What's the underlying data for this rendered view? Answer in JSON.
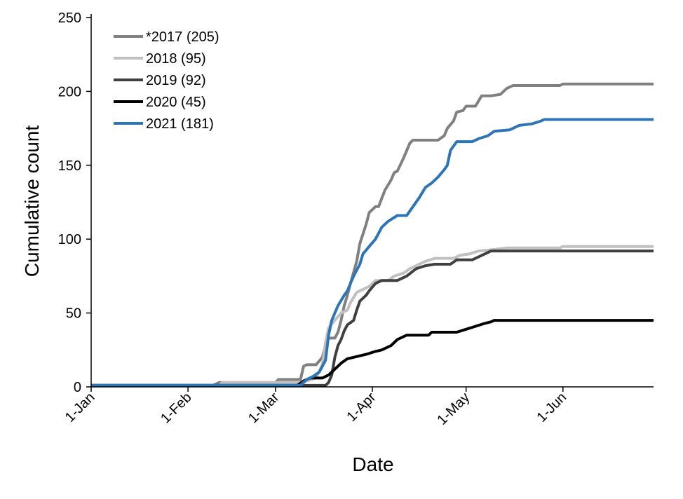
{
  "chart_data": {
    "type": "line",
    "xlabel": "Date",
    "ylabel": "Cumulative count",
    "ylim": [
      0,
      250
    ],
    "xlim": [
      "2021-01-01",
      "2021-06-30"
    ],
    "x_ticks": [
      "1-Jan",
      "1-Feb",
      "1-Mar",
      "1-Apr",
      "1-May",
      "1-Jun"
    ],
    "x_tick_dates": [
      "2021-01-01",
      "2021-02-01",
      "2021-03-01",
      "2021-04-01",
      "2021-05-01",
      "2021-06-01"
    ],
    "y_ticks": [
      0,
      50,
      100,
      150,
      200,
      250
    ],
    "grid": false,
    "legend_position": "top-left",
    "series": [
      {
        "name": "*2017 (205)",
        "color": "#808080",
        "points": [
          [
            "2021-01-01",
            1
          ],
          [
            "2021-02-09",
            1
          ],
          [
            "2021-02-11",
            3
          ],
          [
            "2021-03-01",
            3
          ],
          [
            "2021-03-02",
            5
          ],
          [
            "2021-03-09",
            5
          ],
          [
            "2021-03-10",
            14
          ],
          [
            "2021-03-11",
            15
          ],
          [
            "2021-03-14",
            15
          ],
          [
            "2021-03-16",
            20
          ],
          [
            "2021-03-17",
            28
          ],
          [
            "2021-03-18",
            33
          ],
          [
            "2021-03-20",
            33
          ],
          [
            "2021-03-21",
            37
          ],
          [
            "2021-03-22",
            45
          ],
          [
            "2021-03-23",
            55
          ],
          [
            "2021-03-24",
            62
          ],
          [
            "2021-03-25",
            70
          ],
          [
            "2021-03-27",
            85
          ],
          [
            "2021-03-28",
            97
          ],
          [
            "2021-03-30",
            110
          ],
          [
            "2021-03-31",
            118
          ],
          [
            "2021-04-02",
            122
          ],
          [
            "2021-04-03",
            122
          ],
          [
            "2021-04-05",
            133
          ],
          [
            "2021-04-07",
            140
          ],
          [
            "2021-04-08",
            145
          ],
          [
            "2021-04-09",
            146
          ],
          [
            "2021-04-11",
            155
          ],
          [
            "2021-04-13",
            165
          ],
          [
            "2021-04-14",
            167
          ],
          [
            "2021-04-22",
            167
          ],
          [
            "2021-04-24",
            170
          ],
          [
            "2021-04-25",
            175
          ],
          [
            "2021-04-27",
            180
          ],
          [
            "2021-04-28",
            186
          ],
          [
            "2021-04-30",
            187
          ],
          [
            "2021-05-01",
            190
          ],
          [
            "2021-05-04",
            190
          ],
          [
            "2021-05-06",
            197
          ],
          [
            "2021-05-09",
            197
          ],
          [
            "2021-05-12",
            198
          ],
          [
            "2021-05-14",
            202
          ],
          [
            "2021-05-16",
            204
          ],
          [
            "2021-05-31",
            204
          ],
          [
            "2021-06-01",
            205
          ],
          [
            "2021-06-30",
            205
          ]
        ]
      },
      {
        "name": "2018 (95)",
        "color": "#c0c0c0",
        "points": [
          [
            "2021-01-01",
            1
          ],
          [
            "2021-02-11",
            1
          ],
          [
            "2021-02-12",
            3
          ],
          [
            "2021-03-09",
            3
          ],
          [
            "2021-03-11",
            4
          ],
          [
            "2021-03-14",
            6
          ],
          [
            "2021-03-16",
            15
          ],
          [
            "2021-03-17",
            30
          ],
          [
            "2021-03-18",
            40
          ],
          [
            "2021-03-20",
            45
          ],
          [
            "2021-03-22",
            50
          ],
          [
            "2021-03-24",
            52
          ],
          [
            "2021-03-25",
            57
          ],
          [
            "2021-03-27",
            64
          ],
          [
            "2021-03-29",
            66
          ],
          [
            "2021-03-31",
            68
          ],
          [
            "2021-04-02",
            72
          ],
          [
            "2021-04-06",
            72
          ],
          [
            "2021-04-08",
            75
          ],
          [
            "2021-04-11",
            77
          ],
          [
            "2021-04-13",
            80
          ],
          [
            "2021-04-16",
            83
          ],
          [
            "2021-04-18",
            85
          ],
          [
            "2021-04-21",
            87
          ],
          [
            "2021-04-27",
            87
          ],
          [
            "2021-04-29",
            89
          ],
          [
            "2021-05-02",
            90
          ],
          [
            "2021-05-05",
            92
          ],
          [
            "2021-05-10",
            93
          ],
          [
            "2021-05-14",
            94
          ],
          [
            "2021-05-31",
            94
          ],
          [
            "2021-06-01",
            95
          ],
          [
            "2021-06-30",
            95
          ]
        ]
      },
      {
        "name": "2019 (92)",
        "color": "#404040",
        "points": [
          [
            "2021-01-01",
            1
          ],
          [
            "2021-03-17",
            1
          ],
          [
            "2021-03-18",
            3
          ],
          [
            "2021-03-19",
            8
          ],
          [
            "2021-03-20",
            20
          ],
          [
            "2021-03-21",
            28
          ],
          [
            "2021-03-22",
            32
          ],
          [
            "2021-03-23",
            38
          ],
          [
            "2021-03-24",
            42
          ],
          [
            "2021-03-26",
            45
          ],
          [
            "2021-03-27",
            52
          ],
          [
            "2021-03-28",
            58
          ],
          [
            "2021-03-30",
            62
          ],
          [
            "2021-03-31",
            65
          ],
          [
            "2021-04-02",
            70
          ],
          [
            "2021-04-04",
            72
          ],
          [
            "2021-04-09",
            72
          ],
          [
            "2021-04-12",
            75
          ],
          [
            "2021-04-15",
            80
          ],
          [
            "2021-04-18",
            82
          ],
          [
            "2021-04-21",
            83
          ],
          [
            "2021-04-26",
            83
          ],
          [
            "2021-04-28",
            86
          ],
          [
            "2021-05-03",
            86
          ],
          [
            "2021-05-05",
            88
          ],
          [
            "2021-05-07",
            90
          ],
          [
            "2021-05-09",
            92
          ],
          [
            "2021-06-30",
            92
          ]
        ]
      },
      {
        "name": "2020 (45)",
        "color": "#000000",
        "points": [
          [
            "2021-01-01",
            1
          ],
          [
            "2021-03-08",
            1
          ],
          [
            "2021-03-10",
            4
          ],
          [
            "2021-03-12",
            6
          ],
          [
            "2021-03-16",
            6
          ],
          [
            "2021-03-18",
            8
          ],
          [
            "2021-03-20",
            12
          ],
          [
            "2021-03-22",
            16
          ],
          [
            "2021-03-24",
            19
          ],
          [
            "2021-03-26",
            20
          ],
          [
            "2021-03-28",
            21
          ],
          [
            "2021-03-30",
            22
          ],
          [
            "2021-04-02",
            24
          ],
          [
            "2021-04-04",
            25
          ],
          [
            "2021-04-07",
            28
          ],
          [
            "2021-04-09",
            32
          ],
          [
            "2021-04-12",
            35
          ],
          [
            "2021-04-19",
            35
          ],
          [
            "2021-04-20",
            37
          ],
          [
            "2021-04-28",
            37
          ],
          [
            "2021-05-01",
            39
          ],
          [
            "2021-05-04",
            41
          ],
          [
            "2021-05-07",
            43
          ],
          [
            "2021-05-09",
            44
          ],
          [
            "2021-05-10",
            45
          ],
          [
            "2021-06-30",
            45
          ]
        ]
      },
      {
        "name": "2021 (181)",
        "color": "#2e75b6",
        "points": [
          [
            "2021-01-01",
            1
          ],
          [
            "2021-03-09",
            1
          ],
          [
            "2021-03-11",
            5
          ],
          [
            "2021-03-13",
            7
          ],
          [
            "2021-03-15",
            10
          ],
          [
            "2021-03-17",
            18
          ],
          [
            "2021-03-18",
            35
          ],
          [
            "2021-03-19",
            45
          ],
          [
            "2021-03-21",
            55
          ],
          [
            "2021-03-23",
            62
          ],
          [
            "2021-03-24",
            65
          ],
          [
            "2021-03-25",
            70
          ],
          [
            "2021-03-26",
            75
          ],
          [
            "2021-03-28",
            83
          ],
          [
            "2021-03-29",
            90
          ],
          [
            "2021-03-31",
            95
          ],
          [
            "2021-04-02",
            100
          ],
          [
            "2021-04-04",
            108
          ],
          [
            "2021-04-06",
            112
          ],
          [
            "2021-04-09",
            116
          ],
          [
            "2021-04-12",
            116
          ],
          [
            "2021-04-14",
            122
          ],
          [
            "2021-04-16",
            128
          ],
          [
            "2021-04-18",
            135
          ],
          [
            "2021-04-20",
            138
          ],
          [
            "2021-04-22",
            142
          ],
          [
            "2021-04-24",
            147
          ],
          [
            "2021-04-25",
            150
          ],
          [
            "2021-04-26",
            160
          ],
          [
            "2021-04-27",
            163
          ],
          [
            "2021-04-28",
            166
          ],
          [
            "2021-05-03",
            166
          ],
          [
            "2021-05-05",
            168
          ],
          [
            "2021-05-08",
            170
          ],
          [
            "2021-05-10",
            173
          ],
          [
            "2021-05-15",
            174
          ],
          [
            "2021-05-18",
            177
          ],
          [
            "2021-05-22",
            178
          ],
          [
            "2021-05-25",
            180
          ],
          [
            "2021-05-26",
            181
          ],
          [
            "2021-06-30",
            181
          ]
        ]
      }
    ]
  }
}
